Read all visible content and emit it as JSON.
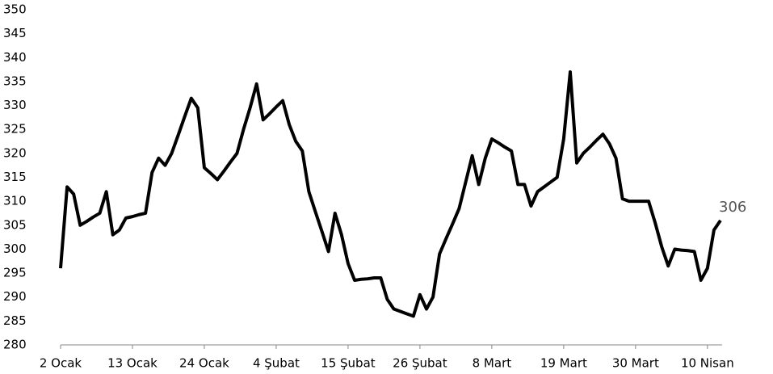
{
  "chart_data": {
    "type": "line",
    "categories": [
      "2 Ocak",
      null,
      null,
      null,
      null,
      null,
      null,
      null,
      null,
      null,
      null,
      "13 Ocak",
      null,
      null,
      null,
      null,
      null,
      null,
      null,
      null,
      null,
      null,
      "24 Ocak",
      null,
      null,
      null,
      null,
      null,
      null,
      null,
      null,
      null,
      null,
      "4 Şubat",
      null,
      null,
      null,
      null,
      null,
      null,
      null,
      null,
      null,
      null,
      "15 Şubat",
      null,
      null,
      null,
      null,
      null,
      null,
      null,
      null,
      null,
      null,
      "26 Şubat",
      null,
      null,
      null,
      null,
      null,
      null,
      null,
      null,
      null,
      null,
      "8 Mart",
      null,
      null,
      null,
      null,
      null,
      null,
      null,
      null,
      null,
      null,
      "19 Mart",
      null,
      null,
      null,
      null,
      null,
      null,
      null,
      null,
      null,
      null,
      "30 Mart",
      null,
      null,
      null,
      null,
      null,
      null,
      null,
      null,
      null,
      null,
      "10 Nisan",
      null,
      null
    ],
    "series": [
      {
        "color": "#000000",
        "values": [
          296,
          313,
          311.5,
          305,
          305.8,
          306.7,
          307.5,
          312,
          303,
          304,
          306.5,
          306.8,
          307.2,
          307.5,
          316,
          319,
          317.5,
          320,
          323.8,
          327.7,
          331.5,
          329.5,
          317,
          315.8,
          314.5,
          316.3,
          318.2,
          320,
          325,
          329.5,
          334.5,
          327,
          328.3,
          329.7,
          331,
          326,
          322.5,
          320.5,
          312,
          307.8,
          303.7,
          299.5,
          307.5,
          303,
          297,
          293.5,
          293.7,
          293.8,
          294,
          294,
          289.5,
          287.5,
          287,
          286.5,
          286,
          290.5,
          287.5,
          290,
          299,
          302.2,
          305.3,
          308.5,
          314,
          319.5,
          313.5,
          319,
          323,
          322.2,
          321.3,
          320.5,
          313.5,
          313.5,
          309,
          312,
          313,
          314,
          315,
          323,
          337,
          318,
          320,
          321.3,
          322.7,
          324,
          322,
          319,
          310.5,
          310,
          310,
          310,
          310,
          305.5,
          300.5,
          296.5,
          300,
          299.8,
          299.7,
          299.5,
          293.5,
          296,
          304,
          306
        ]
      }
    ],
    "ylim": [
      280,
      350
    ],
    "yticks": [
      280,
      285,
      290,
      295,
      300,
      305,
      310,
      315,
      320,
      325,
      330,
      335,
      340,
      345,
      350
    ],
    "grid": false,
    "label_last": true
  }
}
